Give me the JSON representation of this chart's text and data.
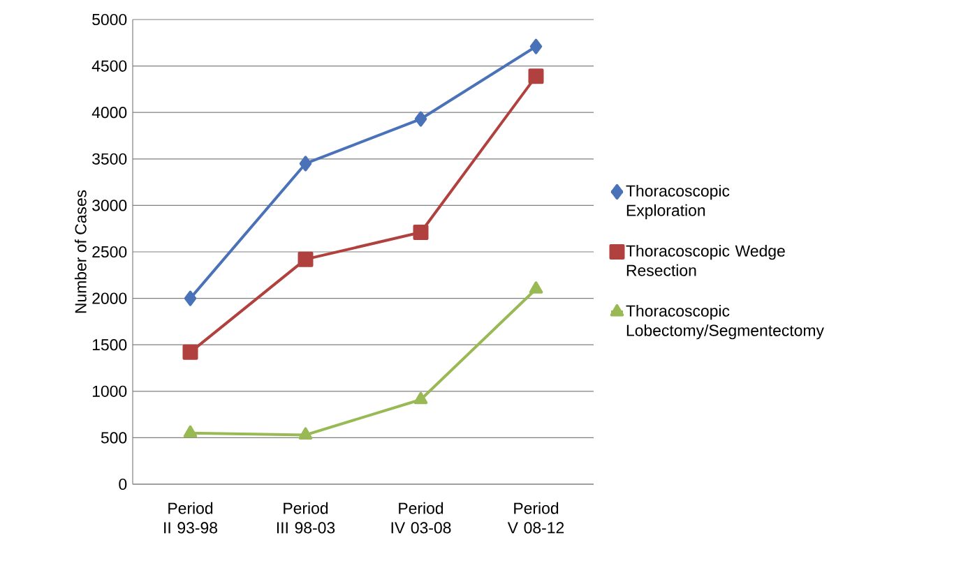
{
  "chart_data": {
    "type": "line",
    "ylabel": "Number of Cases",
    "categories": [
      "Period II 93-98",
      "Period III 98-03",
      "Period IV 03-08",
      "Period V 08-12"
    ],
    "series": [
      {
        "name": "Thoracoscopic Exploration",
        "color": "#4a72b8",
        "marker": "diamond",
        "values": [
          2000,
          3450,
          3930,
          4710
        ]
      },
      {
        "name": "Thoracoscopic Wedge Resection",
        "color": "#b0413e",
        "marker": "square",
        "values": [
          1420,
          2420,
          2710,
          4390
        ]
      },
      {
        "name": "Thoracoscopic Lobectomy/Segmentectomy",
        "color": "#98b954",
        "marker": "triangle",
        "values": [
          550,
          530,
          910,
          2100
        ]
      }
    ],
    "ylim": [
      0,
      5000
    ],
    "yticks": [
      0,
      500,
      1000,
      1500,
      2000,
      2500,
      3000,
      3500,
      4000,
      4500,
      5000
    ],
    "grid": "y",
    "legend": "right",
    "line_style": "solid"
  }
}
